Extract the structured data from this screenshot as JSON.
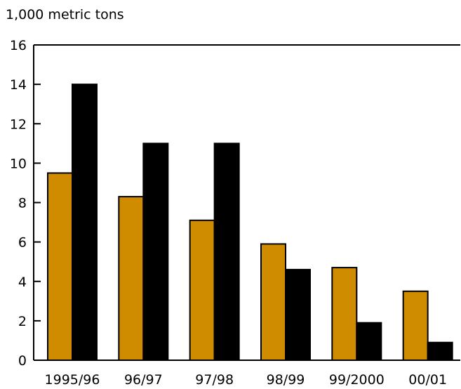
{
  "chart_data": {
    "type": "bar",
    "ylabel": "1,000 metric tons",
    "categories": [
      "1995/96",
      "96/97",
      "97/98",
      "98/99",
      "99/2000",
      "00/01"
    ],
    "series": [
      {
        "values": [
          9.5,
          8.3,
          7.1,
          5.9,
          4.7,
          3.5
        ],
        "color": "#d08c00"
      },
      {
        "values": [
          14.0,
          11.0,
          11.0,
          4.6,
          1.9,
          0.9
        ],
        "color": "#000000"
      }
    ],
    "ylim": [
      0,
      16
    ],
    "yticks": [
      "0",
      "2",
      "4",
      "6",
      "8",
      "10",
      "12",
      "14",
      "16"
    ],
    "grid": false
  }
}
